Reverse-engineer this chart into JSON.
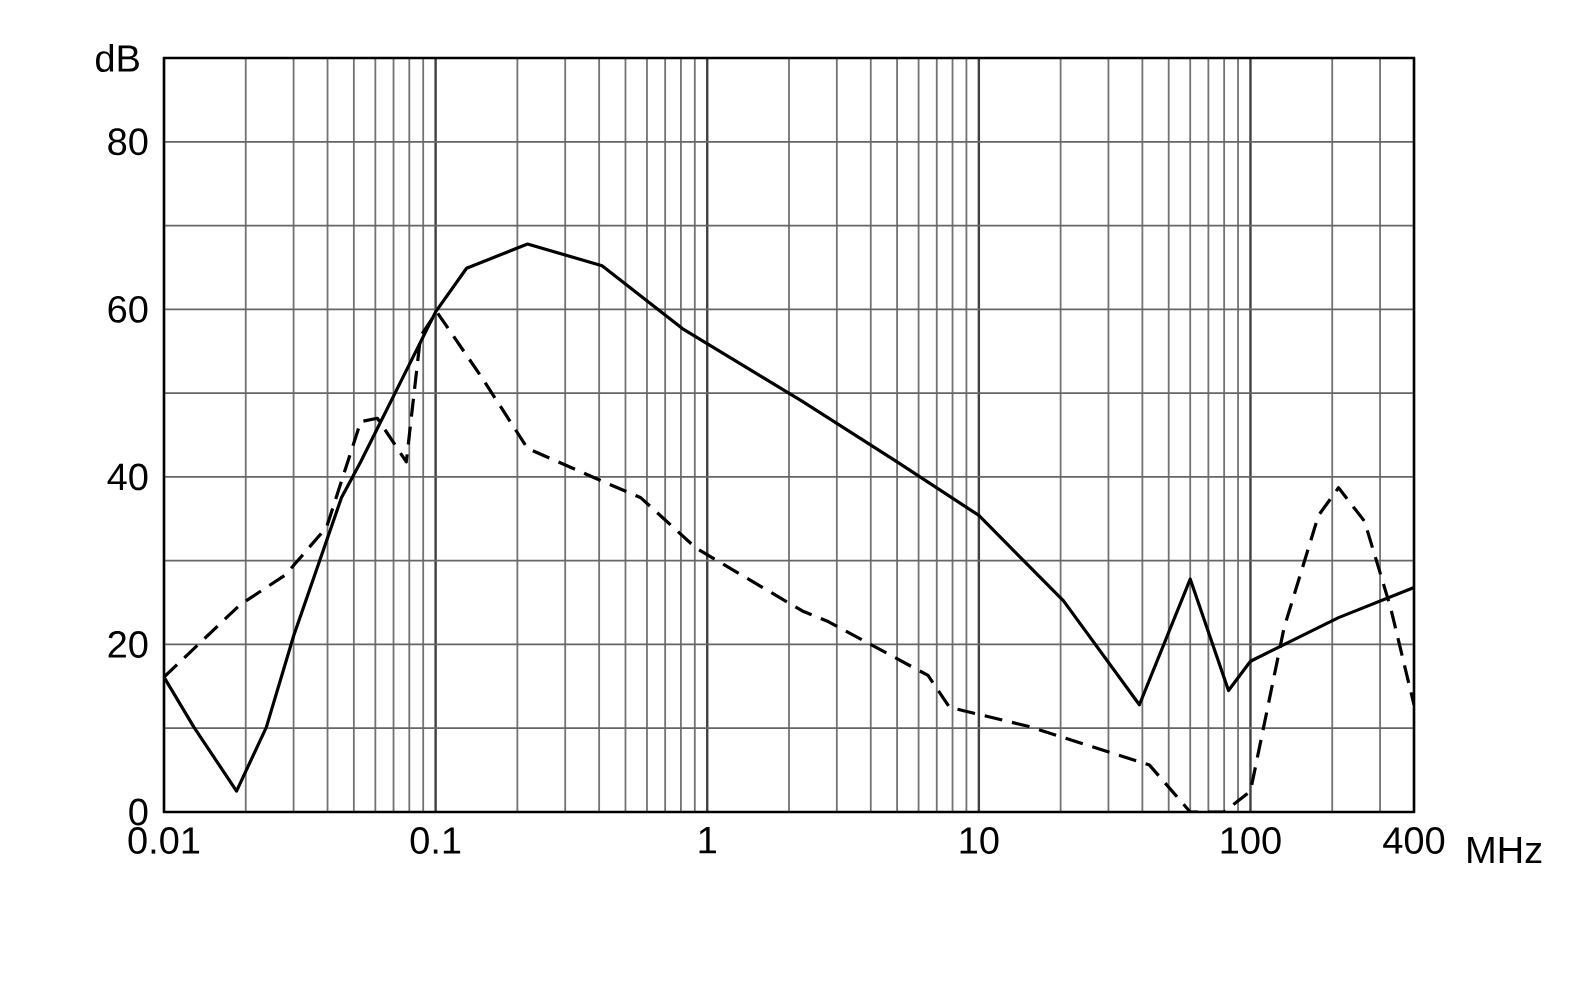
{
  "chart_data": {
    "type": "line",
    "xlabel": "MHz",
    "ylabel": "dB",
    "log": "x",
    "grid": true,
    "xlim": [
      0.01,
      400
    ],
    "ylim": [
      0,
      90
    ],
    "xticks": [
      0.01,
      0.1,
      1,
      10,
      100,
      400
    ],
    "yticks": [
      0,
      {
        "value": 10,
        "label": null
      },
      20,
      {
        "value": 30,
        "label": null
      },
      40,
      {
        "value": 50,
        "label": null
      },
      60,
      {
        "value": 70,
        "label": null
      },
      80,
      {
        "value": 90,
        "label": null
      }
    ],
    "series": [
      {
        "color": "#000000",
        "line_style": "solid",
        "x": [
          0.01,
          0.0129,
          0.0185,
          0.0238,
          0.03,
          0.045,
          0.053,
          0.1,
          0.13,
          0.218,
          0.41,
          0.81,
          2.24,
          5.0,
          10,
          20.5,
          39,
          60,
          83,
          100,
          211,
          400
        ],
        "values": [
          16.1,
          10.1,
          2.5,
          10.1,
          21,
          37.5,
          41.8,
          59.7,
          64.9,
          67.8,
          65.2,
          57.7,
          49,
          41.8,
          35.4,
          25.2,
          12.8,
          27.8,
          14.5,
          18,
          23.2,
          26.8
        ]
      },
      {
        "color": "#000000",
        "line_style": "dashed",
        "x": [
          0.01,
          0.019,
          0.028,
          0.0397,
          0.053,
          0.061,
          0.078,
          0.088,
          0.101,
          0.147,
          0.218,
          0.41,
          0.57,
          0.91,
          2.24,
          2.8,
          6.5,
          7.8,
          15.3,
          42.5,
          60,
          80,
          100,
          133,
          178,
          211,
          263,
          328,
          400
        ],
        "values": [
          16.1,
          24.7,
          28.3,
          34,
          46.6,
          47,
          41.8,
          56.8,
          59.7,
          52,
          43.4,
          39.5,
          37.5,
          31.5,
          24,
          22.7,
          16.3,
          12.5,
          10.2,
          5.6,
          0,
          0,
          2.5,
          22,
          35.4,
          38.7,
          34.7,
          24.4,
          12.8
        ]
      }
    ]
  }
}
